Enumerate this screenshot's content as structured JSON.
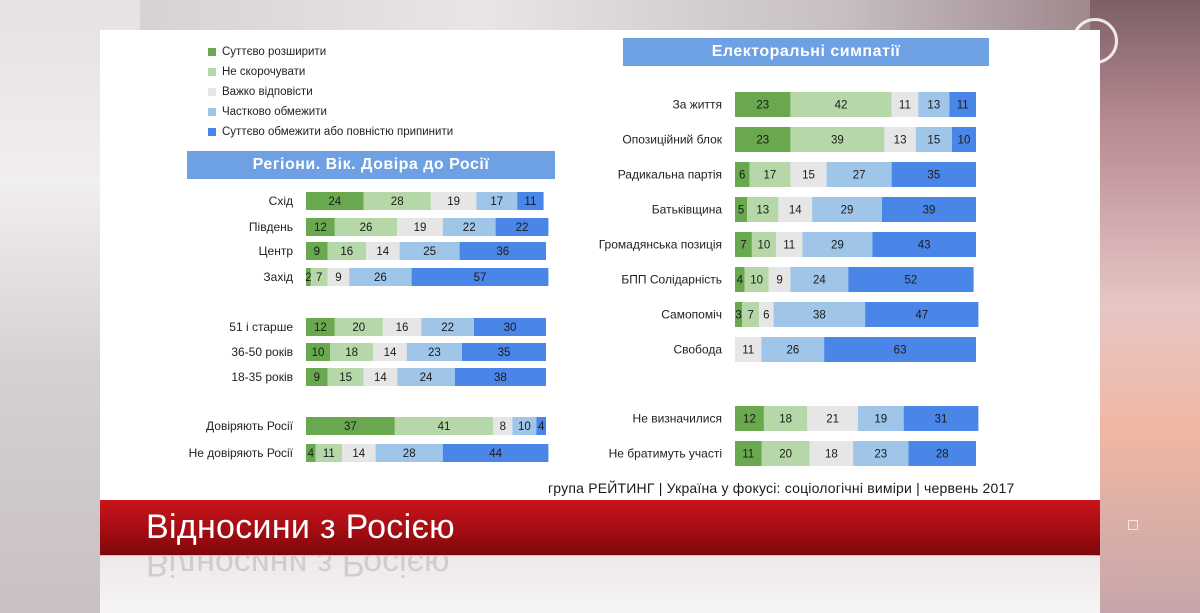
{
  "colors": {
    "s1": "#6aa84f",
    "s2": "#b6d7a8",
    "s3": "#e6e6e6",
    "s4": "#9fc5e8",
    "s5": "#4a86e8",
    "header_bg": "#6ea0e4",
    "banner": "#b3101a"
  },
  "legend": [
    "Суттєво розширити",
    "Не скорочувати",
    "Важко відповісти",
    "Частково обмежити",
    "Суттєво обмежити або повністю припинити"
  ],
  "source_text": "група РЕЙТИНГ  |  Україна у фокусі: соціологічні виміри  |  червень 2017",
  "banner_title": "Відносини з Росією",
  "chart_data": [
    {
      "type": "bar",
      "orientation": "horizontal",
      "stacked": true,
      "title": "Регіони. Вік. Довіра до Росії",
      "categories": [
        "Схід",
        "Південь",
        "Центр",
        "Захід",
        "51 і старше",
        "36-50 років",
        "18-35 років",
        "Довіряють Росії",
        "Не довіряють Росії"
      ],
      "series": [
        {
          "name": "Суттєво розширити",
          "values": [
            24,
            12,
            9,
            2,
            12,
            10,
            9,
            37,
            4
          ]
        },
        {
          "name": "Не скорочувати",
          "values": [
            28,
            26,
            16,
            7,
            20,
            18,
            15,
            41,
            11
          ]
        },
        {
          "name": "Важко відповісти",
          "values": [
            19,
            19,
            14,
            9,
            16,
            14,
            14,
            8,
            14
          ]
        },
        {
          "name": "Частково обмежити",
          "values": [
            17,
            22,
            25,
            26,
            22,
            23,
            24,
            10,
            28
          ]
        },
        {
          "name": "Суттєво обмежити або повністю припинити",
          "values": [
            11,
            22,
            36,
            57,
            30,
            35,
            38,
            4,
            44
          ]
        }
      ]
    },
    {
      "type": "bar",
      "orientation": "horizontal",
      "stacked": true,
      "title": "Електоральні симпатії",
      "categories": [
        "За життя",
        "Опозиційний блок",
        "Радикальна партія",
        "Батьківщина",
        "Громадянська позиція",
        "БПП Солідарність",
        "Самопоміч",
        "Свобода",
        "Не визначилися",
        "Не братимуть участі"
      ],
      "series": [
        {
          "name": "Суттєво розширити",
          "values": [
            23,
            23,
            6,
            5,
            7,
            4,
            3,
            0,
            12,
            11
          ]
        },
        {
          "name": "Не скорочувати",
          "values": [
            42,
            39,
            17,
            13,
            10,
            10,
            7,
            0,
            18,
            20
          ]
        },
        {
          "name": "Важко відповісти",
          "values": [
            11,
            13,
            15,
            14,
            11,
            9,
            6,
            11,
            21,
            18
          ]
        },
        {
          "name": "Частково обмежити",
          "values": [
            13,
            15,
            27,
            29,
            29,
            24,
            38,
            26,
            19,
            23
          ]
        },
        {
          "name": "Суттєво обмежити або повністю припинити",
          "values": [
            11,
            10,
            35,
            39,
            43,
            52,
            47,
            63,
            31,
            28
          ]
        }
      ]
    }
  ]
}
